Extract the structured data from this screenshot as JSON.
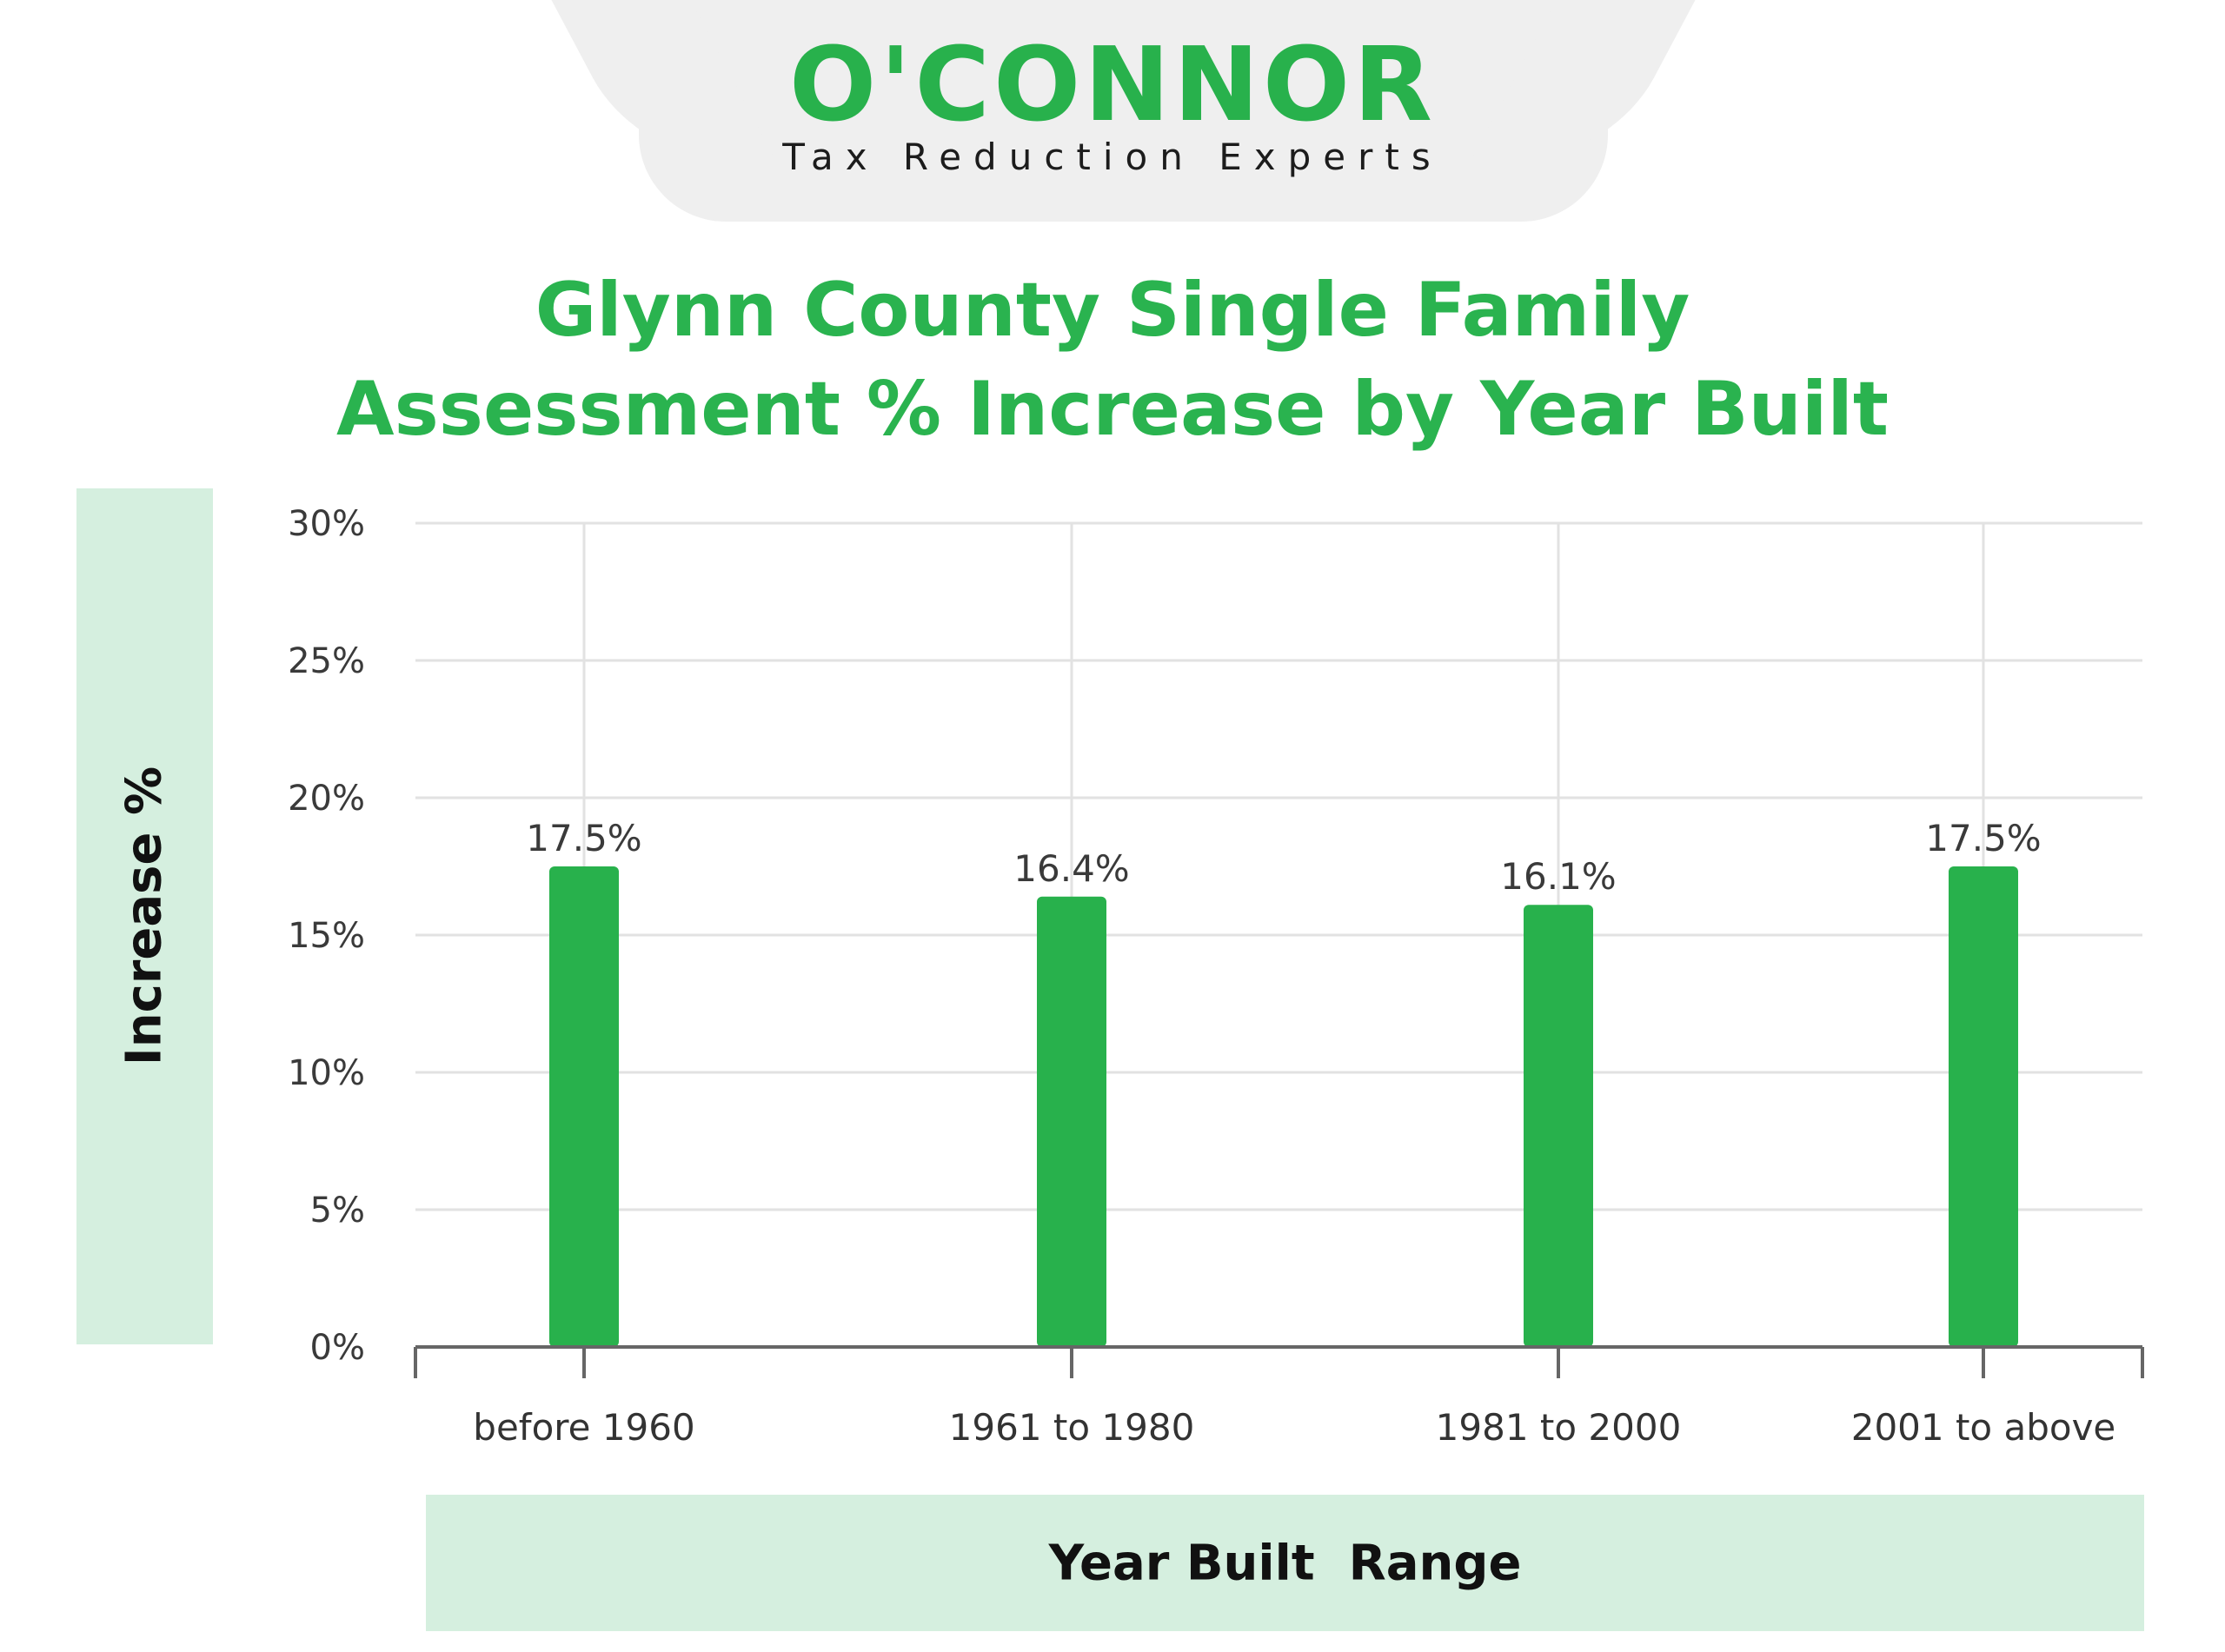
{
  "logo": {
    "wordmark": "O'CONNOR",
    "tagline": "Tax Reduction Experts",
    "color": "#28b14c"
  },
  "chart_data": {
    "type": "bar",
    "title_line1": "Glynn County Single Family",
    "title_line2": "Assessment % Increase by Year Built",
    "xlabel": "Year Built  Range",
    "ylabel": "Increase %",
    "categories": [
      "before 1960",
      "1961 to 1980",
      "1981 to 2000",
      "2001 to above"
    ],
    "values": [
      17.5,
      16.4,
      16.1,
      17.5
    ],
    "value_labels": [
      "17.5%",
      "16.4%",
      "16.1%",
      "17.5%"
    ],
    "ylim": [
      0,
      30
    ],
    "y_ticks": [
      0,
      5,
      10,
      15,
      20,
      25,
      30
    ],
    "y_tick_labels": [
      "0%",
      "5%",
      "10%",
      "15%",
      "20%",
      "25%",
      "30%"
    ],
    "grid": true,
    "bar_color": "#28b14c",
    "label_band_color": "#d5efdf"
  }
}
